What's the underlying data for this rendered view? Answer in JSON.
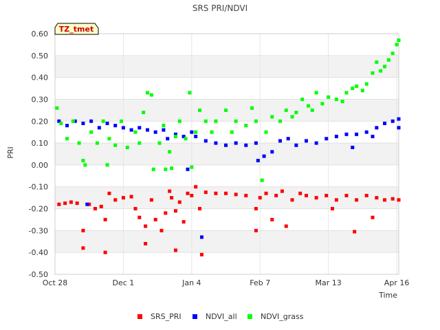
{
  "chart_data": {
    "type": "scatter",
    "title": "SRS PRI/NDVI",
    "xlabel": "Time",
    "ylabel": "PRI",
    "badge": "TZ_tmet",
    "x_ticks": [
      "Oct 28",
      "Dec 1",
      "Jan 4",
      "Feb 7",
      "Mar 13",
      "Apr 16"
    ],
    "x_tick_days": [
      0,
      34,
      68,
      102,
      136,
      170
    ],
    "xlim_days": [
      0,
      171
    ],
    "y_ticks": [
      "0.60",
      "0.50",
      "0.40",
      "0.30",
      "0.20",
      "0.10",
      "0.00",
      "-0.10",
      "-0.20",
      "-0.30",
      "-0.40",
      "-0.50"
    ],
    "ylim": [
      -0.5,
      0.6
    ],
    "series": [
      {
        "name": "SRS_PRI",
        "color": "#ff0000",
        "points": [
          [
            2,
            -0.18
          ],
          [
            5,
            -0.175
          ],
          [
            8,
            -0.17
          ],
          [
            11,
            -0.175
          ],
          [
            14,
            -0.38
          ],
          [
            14,
            -0.3
          ],
          [
            17,
            -0.18
          ],
          [
            20,
            -0.2
          ],
          [
            23,
            -0.19
          ],
          [
            25,
            -0.4
          ],
          [
            25,
            -0.25
          ],
          [
            27,
            -0.13
          ],
          [
            30,
            -0.16
          ],
          [
            34,
            -0.15
          ],
          [
            38,
            -0.145
          ],
          [
            40,
            -0.2
          ],
          [
            42,
            -0.24
          ],
          [
            45,
            -0.36
          ],
          [
            45,
            -0.28
          ],
          [
            48,
            -0.16
          ],
          [
            50,
            -0.25
          ],
          [
            53,
            -0.3
          ],
          [
            55,
            -0.22
          ],
          [
            57,
            -0.12
          ],
          [
            58,
            -0.15
          ],
          [
            60,
            -0.39
          ],
          [
            60,
            -0.21
          ],
          [
            62,
            -0.17
          ],
          [
            64,
            -0.26
          ],
          [
            66,
            -0.13
          ],
          [
            68,
            -0.14
          ],
          [
            70,
            -0.1
          ],
          [
            72,
            -0.2
          ],
          [
            73,
            -0.41
          ],
          [
            75,
            -0.125
          ],
          [
            80,
            -0.13
          ],
          [
            85,
            -0.13
          ],
          [
            90,
            -0.135
          ],
          [
            95,
            -0.14
          ],
          [
            100,
            -0.2
          ],
          [
            100,
            -0.3
          ],
          [
            102,
            -0.15
          ],
          [
            105,
            -0.13
          ],
          [
            108,
            -0.25
          ],
          [
            110,
            -0.14
          ],
          [
            113,
            -0.12
          ],
          [
            115,
            -0.28
          ],
          [
            118,
            -0.16
          ],
          [
            122,
            -0.13
          ],
          [
            125,
            -0.14
          ],
          [
            130,
            -0.15
          ],
          [
            135,
            -0.14
          ],
          [
            138,
            -0.2
          ],
          [
            140,
            -0.16
          ],
          [
            145,
            -0.14
          ],
          [
            149,
            -0.305
          ],
          [
            150,
            -0.16
          ],
          [
            155,
            -0.14
          ],
          [
            158,
            -0.24
          ],
          [
            160,
            -0.15
          ],
          [
            164,
            -0.16
          ],
          [
            168,
            -0.155
          ],
          [
            171,
            -0.16
          ]
        ]
      },
      {
        "name": "NDVI_all",
        "color": "#0000ff",
        "points": [
          [
            2,
            0.2
          ],
          [
            6,
            0.18
          ],
          [
            10,
            0.2
          ],
          [
            14,
            0.19
          ],
          [
            16,
            -0.18
          ],
          [
            18,
            0.2
          ],
          [
            22,
            0.17
          ],
          [
            26,
            0.19
          ],
          [
            30,
            0.18
          ],
          [
            34,
            0.17
          ],
          [
            38,
            0.16
          ],
          [
            42,
            0.17
          ],
          [
            46,
            0.16
          ],
          [
            50,
            0.15
          ],
          [
            54,
            0.16
          ],
          [
            56,
            0.12
          ],
          [
            60,
            0.14
          ],
          [
            64,
            0.13
          ],
          [
            66,
            -0.02
          ],
          [
            68,
            0.15
          ],
          [
            70,
            0.13
          ],
          [
            73,
            -0.33
          ],
          [
            75,
            0.11
          ],
          [
            80,
            0.1
          ],
          [
            85,
            0.09
          ],
          [
            90,
            0.1
          ],
          [
            95,
            0.09
          ],
          [
            100,
            0.1
          ],
          [
            101,
            0.02
          ],
          [
            104,
            0.04
          ],
          [
            108,
            0.06
          ],
          [
            112,
            0.11
          ],
          [
            116,
            0.12
          ],
          [
            120,
            0.09
          ],
          [
            125,
            0.11
          ],
          [
            130,
            0.1
          ],
          [
            135,
            0.12
          ],
          [
            140,
            0.13
          ],
          [
            145,
            0.14
          ],
          [
            148,
            0.08
          ],
          [
            150,
            0.14
          ],
          [
            155,
            0.15
          ],
          [
            158,
            0.13
          ],
          [
            160,
            0.17
          ],
          [
            164,
            0.19
          ],
          [
            168,
            0.2
          ],
          [
            171,
            0.21
          ],
          [
            171,
            0.17
          ]
        ]
      },
      {
        "name": "NDVI_grass",
        "color": "#00ff00",
        "points": [
          [
            1,
            0.26
          ],
          [
            3,
            0.19
          ],
          [
            6,
            0.12
          ],
          [
            9,
            0.2
          ],
          [
            12,
            0.1
          ],
          [
            14,
            0.02
          ],
          [
            15,
            0.0
          ],
          [
            18,
            0.15
          ],
          [
            21,
            0.1
          ],
          [
            24,
            0.2
          ],
          [
            26,
            0.0
          ],
          [
            27,
            0.12
          ],
          [
            30,
            0.09
          ],
          [
            33,
            0.2
          ],
          [
            36,
            0.08
          ],
          [
            40,
            0.15
          ],
          [
            42,
            0.1
          ],
          [
            44,
            0.24
          ],
          [
            46,
            0.33
          ],
          [
            48,
            0.32
          ],
          [
            49,
            -0.02
          ],
          [
            52,
            0.1
          ],
          [
            54,
            0.18
          ],
          [
            55,
            -0.02
          ],
          [
            57,
            0.06
          ],
          [
            58,
            -0.015
          ],
          [
            60,
            0.13
          ],
          [
            62,
            0.2
          ],
          [
            65,
            0.12
          ],
          [
            67,
            0.33
          ],
          [
            68,
            -0.01
          ],
          [
            70,
            0.15
          ],
          [
            72,
            0.25
          ],
          [
            75,
            0.2
          ],
          [
            78,
            0.15
          ],
          [
            80,
            0.2
          ],
          [
            85,
            0.25
          ],
          [
            88,
            0.15
          ],
          [
            90,
            0.2
          ],
          [
            95,
            0.18
          ],
          [
            98,
            0.26
          ],
          [
            100,
            0.2
          ],
          [
            103,
            -0.07
          ],
          [
            105,
            0.15
          ],
          [
            108,
            0.22
          ],
          [
            112,
            0.2
          ],
          [
            115,
            0.25
          ],
          [
            118,
            0.22
          ],
          [
            120,
            0.24
          ],
          [
            123,
            0.3
          ],
          [
            126,
            0.27
          ],
          [
            128,
            0.25
          ],
          [
            130,
            0.33
          ],
          [
            133,
            0.28
          ],
          [
            136,
            0.31
          ],
          [
            140,
            0.3
          ],
          [
            143,
            0.29
          ],
          [
            145,
            0.33
          ],
          [
            148,
            0.35
          ],
          [
            150,
            0.36
          ],
          [
            153,
            0.34
          ],
          [
            155,
            0.37
          ],
          [
            158,
            0.42
          ],
          [
            160,
            0.47
          ],
          [
            162,
            0.43
          ],
          [
            164,
            0.45
          ],
          [
            166,
            0.48
          ],
          [
            168,
            0.51
          ],
          [
            170,
            0.55
          ],
          [
            171,
            0.57
          ]
        ]
      }
    ],
    "grid": true,
    "legend_position": "bottom-center"
  }
}
